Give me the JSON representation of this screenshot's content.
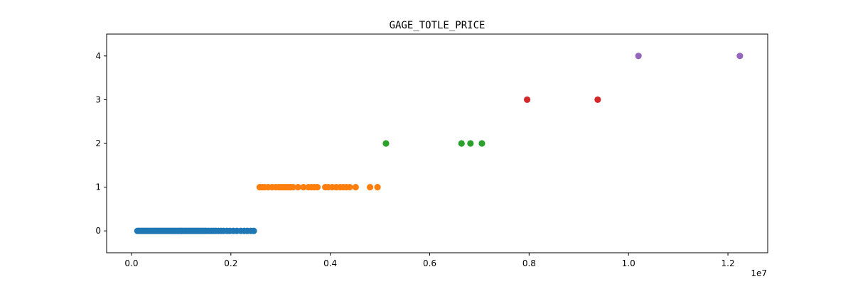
{
  "chart_data": {
    "type": "scatter",
    "title": "GAGE_TOTLE_PRICE",
    "xlabel": "",
    "ylabel": "",
    "x_offset_label": "1e7",
    "xlim": [
      -500000,
      12800000
    ],
    "ylim": [
      -0.5,
      4.5
    ],
    "x_ticks": [
      0.0,
      0.2,
      0.4,
      0.6,
      0.8,
      1.0,
      1.2
    ],
    "x_tick_labels": [
      "0.0",
      "0.2",
      "0.4",
      "0.6",
      "0.8",
      "1.0",
      "1.2"
    ],
    "y_ticks": [
      0,
      1,
      2,
      3,
      4
    ],
    "y_tick_labels": [
      "0",
      "1",
      "2",
      "3",
      "4"
    ],
    "grid": false,
    "series": [
      {
        "color": "#1f77b4",
        "points": [
          [
            120000,
            0
          ],
          [
            150000,
            0
          ],
          [
            180000,
            0
          ],
          [
            210000,
            0
          ],
          [
            240000,
            0
          ],
          [
            270000,
            0
          ],
          [
            300000,
            0
          ],
          [
            330000,
            0
          ],
          [
            360000,
            0
          ],
          [
            390000,
            0
          ],
          [
            420000,
            0
          ],
          [
            450000,
            0
          ],
          [
            480000,
            0
          ],
          [
            510000,
            0
          ],
          [
            540000,
            0
          ],
          [
            570000,
            0
          ],
          [
            600000,
            0
          ],
          [
            630000,
            0
          ],
          [
            660000,
            0
          ],
          [
            690000,
            0
          ],
          [
            720000,
            0
          ],
          [
            750000,
            0
          ],
          [
            780000,
            0
          ],
          [
            810000,
            0
          ],
          [
            840000,
            0
          ],
          [
            870000,
            0
          ],
          [
            900000,
            0
          ],
          [
            930000,
            0
          ],
          [
            960000,
            0
          ],
          [
            990000,
            0
          ],
          [
            1020000,
            0
          ],
          [
            1050000,
            0
          ],
          [
            1080000,
            0
          ],
          [
            1110000,
            0
          ],
          [
            1140000,
            0
          ],
          [
            1170000,
            0
          ],
          [
            1200000,
            0
          ],
          [
            1230000,
            0
          ],
          [
            1260000,
            0
          ],
          [
            1290000,
            0
          ],
          [
            1320000,
            0
          ],
          [
            1350000,
            0
          ],
          [
            1380000,
            0
          ],
          [
            1410000,
            0
          ],
          [
            1440000,
            0
          ],
          [
            1470000,
            0
          ],
          [
            1500000,
            0
          ],
          [
            1540000,
            0
          ],
          [
            1580000,
            0
          ],
          [
            1620000,
            0
          ],
          [
            1660000,
            0
          ],
          [
            1700000,
            0
          ],
          [
            1750000,
            0
          ],
          [
            1800000,
            0
          ],
          [
            1850000,
            0
          ],
          [
            1920000,
            0
          ],
          [
            1980000,
            0
          ],
          [
            2050000,
            0
          ],
          [
            2120000,
            0
          ],
          [
            2200000,
            0
          ],
          [
            2270000,
            0
          ],
          [
            2330000,
            0
          ],
          [
            2400000,
            0
          ],
          [
            2460000,
            0
          ]
        ]
      },
      {
        "color": "#ff7f0e",
        "points": [
          [
            2580000,
            1
          ],
          [
            2630000,
            1
          ],
          [
            2680000,
            1
          ],
          [
            2750000,
            1
          ],
          [
            2830000,
            1
          ],
          [
            2900000,
            1
          ],
          [
            2960000,
            1
          ],
          [
            3000000,
            1
          ],
          [
            3040000,
            1
          ],
          [
            3080000,
            1
          ],
          [
            3120000,
            1
          ],
          [
            3160000,
            1
          ],
          [
            3200000,
            1
          ],
          [
            3250000,
            1
          ],
          [
            3350000,
            1
          ],
          [
            3460000,
            1
          ],
          [
            3560000,
            1
          ],
          [
            3620000,
            1
          ],
          [
            3680000,
            1
          ],
          [
            3740000,
            1
          ],
          [
            3900000,
            1
          ],
          [
            3960000,
            1
          ],
          [
            4040000,
            1
          ],
          [
            4120000,
            1
          ],
          [
            4200000,
            1
          ],
          [
            4260000,
            1
          ],
          [
            4320000,
            1
          ],
          [
            4390000,
            1
          ],
          [
            4510000,
            1
          ],
          [
            4800000,
            1
          ],
          [
            4950000,
            1
          ]
        ]
      },
      {
        "color": "#2ca02c",
        "points": [
          [
            5120000,
            2
          ],
          [
            6640000,
            2
          ],
          [
            6820000,
            2
          ],
          [
            7050000,
            2
          ]
        ]
      },
      {
        "color": "#d62728",
        "points": [
          [
            7960000,
            3
          ],
          [
            9380000,
            3
          ]
        ]
      },
      {
        "color": "#9467bd",
        "points": [
          [
            10200000,
            4
          ],
          [
            12240000,
            4
          ]
        ]
      }
    ]
  }
}
